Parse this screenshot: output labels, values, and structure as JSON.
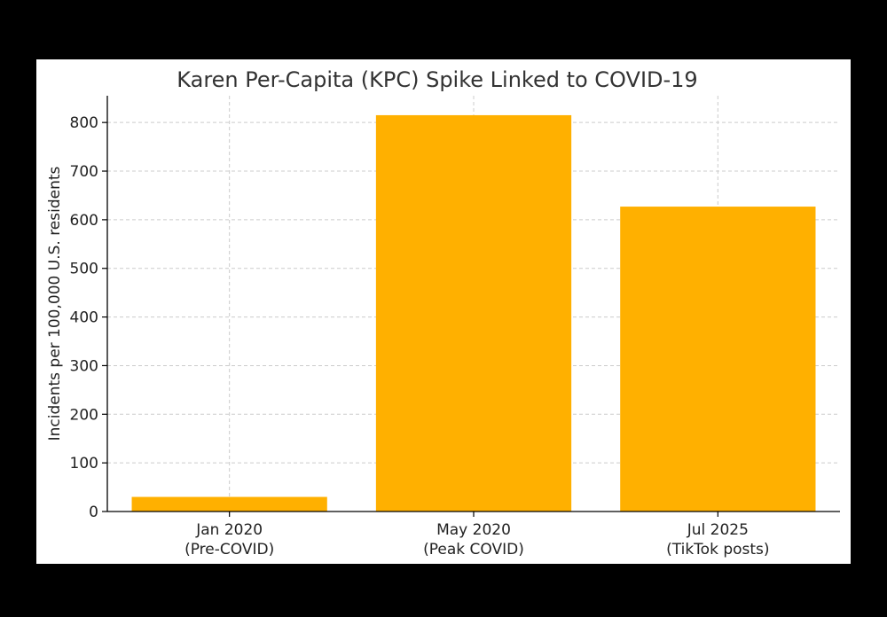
{
  "chart_data": {
    "type": "bar",
    "title": "Karen Per-Capita (KPC) Spike Linked to COVID-19",
    "xlabel": "",
    "ylabel": "Incidents per 100,000 U.S. residents",
    "categories": [
      [
        "Jan 2020",
        "(Pre-COVID)"
      ],
      [
        "May 2020",
        "(Peak COVID)"
      ],
      [
        "Jul 2025",
        "(TikTok posts)"
      ]
    ],
    "values": [
      30,
      815,
      627
    ],
    "ylim": [
      0,
      855
    ],
    "yticks": [
      0,
      100,
      200,
      300,
      400,
      500,
      600,
      700,
      800
    ],
    "grid": true,
    "colors": {
      "bar": "#FFB000",
      "grid": "#cccccc",
      "axis": "#000000"
    }
  }
}
